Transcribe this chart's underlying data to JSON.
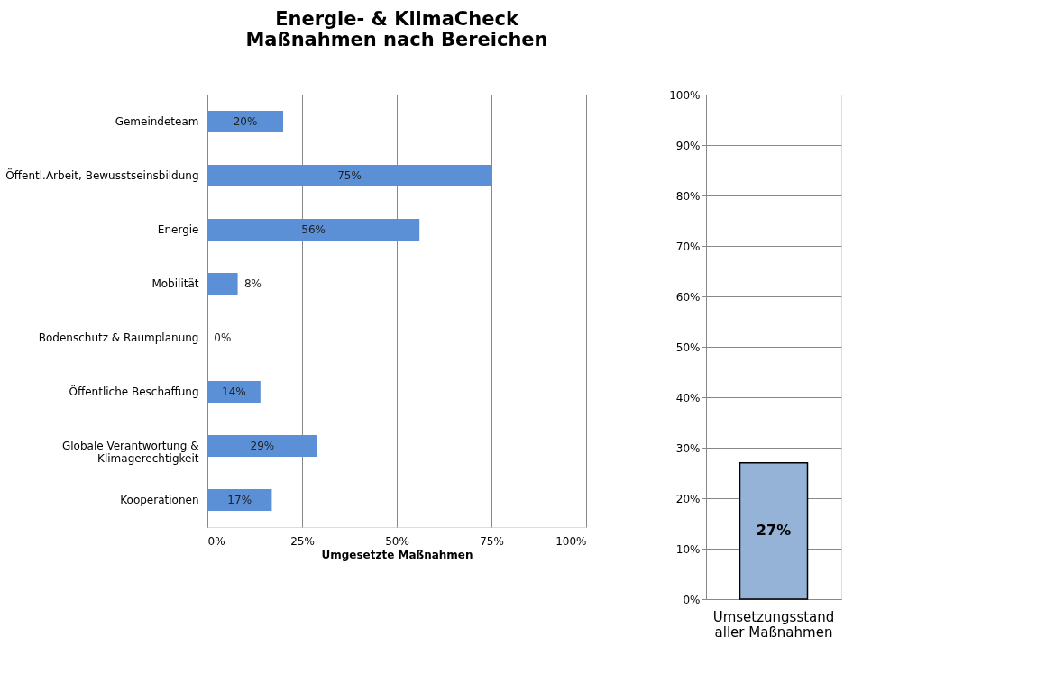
{
  "chart_data": [
    {
      "type": "bar",
      "orientation": "horizontal",
      "title": [
        "Energie- & KlimaCheck",
        "Maßnahmen nach Bereichen"
      ],
      "categories": [
        "Gemeindeteam",
        "Öffentl.Arbeit, Bewusstseinsbildung",
        "Energie",
        "Mobilität",
        "Bodenschutz & Raumplanung",
        "Öffentliche Beschaffung",
        "Globale Verantwortung &\nKlimagerechtigkeit",
        "Kooperationen"
      ],
      "values": [
        20,
        75,
        56,
        8,
        0,
        14,
        29,
        17
      ],
      "color": "#5b8fd6",
      "value_labels": [
        "20%",
        "75%",
        "56%",
        "8%",
        "0%",
        "14%",
        "29%",
        "17%"
      ],
      "xlim": [
        0,
        100
      ],
      "xticks": [
        {
          "value": 0,
          "label": "0%"
        },
        {
          "value": 25,
          "label": "25%"
        },
        {
          "value": 50,
          "label": "50%"
        },
        {
          "value": 75,
          "label": "75%"
        },
        {
          "value": 100,
          "label": "100%"
        }
      ],
      "xlabel": "Umgesetzte Maßnahmen",
      "grid": "x"
    },
    {
      "type": "bar",
      "categories": [
        "Umsetzungsstand\naller Maßnahmen"
      ],
      "values": [
        27
      ],
      "color": "#95b3d7",
      "value_labels": [
        "27%"
      ],
      "ylim": [
        0,
        100
      ],
      "yticks": [
        {
          "value": 0,
          "label": "0%"
        },
        {
          "value": 10,
          "label": "10%"
        },
        {
          "value": 20,
          "label": "20%"
        },
        {
          "value": 30,
          "label": "30%"
        },
        {
          "value": 40,
          "label": "40%"
        },
        {
          "value": 50,
          "label": "50%"
        },
        {
          "value": 60,
          "label": "60%"
        },
        {
          "value": 70,
          "label": "70%"
        },
        {
          "value": 80,
          "label": "80%"
        },
        {
          "value": 90,
          "label": "90%"
        },
        {
          "value": 100,
          "label": "100%"
        }
      ],
      "grid": "y"
    }
  ]
}
